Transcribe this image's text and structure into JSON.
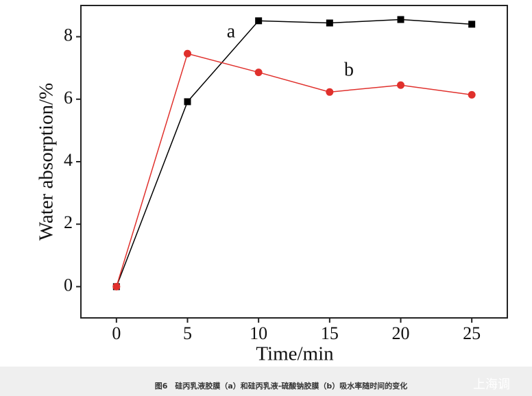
{
  "chart_data": {
    "type": "line",
    "x": [
      0,
      5,
      10,
      15,
      20,
      25
    ],
    "series": [
      {
        "name": "a",
        "color": "#000000",
        "marker": "square",
        "values": [
          0,
          5.92,
          8.51,
          8.44,
          8.55,
          8.4
        ]
      },
      {
        "name": "b",
        "color": "#e0302c",
        "marker": "circle",
        "values": [
          0,
          7.46,
          6.86,
          6.23,
          6.45,
          6.14
        ]
      }
    ],
    "xlabel": "Time/min",
    "ylabel": "Water absorption/%",
    "xlim": [
      -2.5,
      27.5
    ],
    "ylim": [
      -1,
      9
    ],
    "xticks": [
      0,
      5,
      10,
      15,
      20,
      25
    ],
    "yticks": [
      0,
      2,
      4,
      6,
      8
    ]
  },
  "caption": "图6　硅丙乳液胶膜（a）和硅丙乳液-硫酸钠胶膜（b）吸水率随时间的变化",
  "watermark": "上海调"
}
